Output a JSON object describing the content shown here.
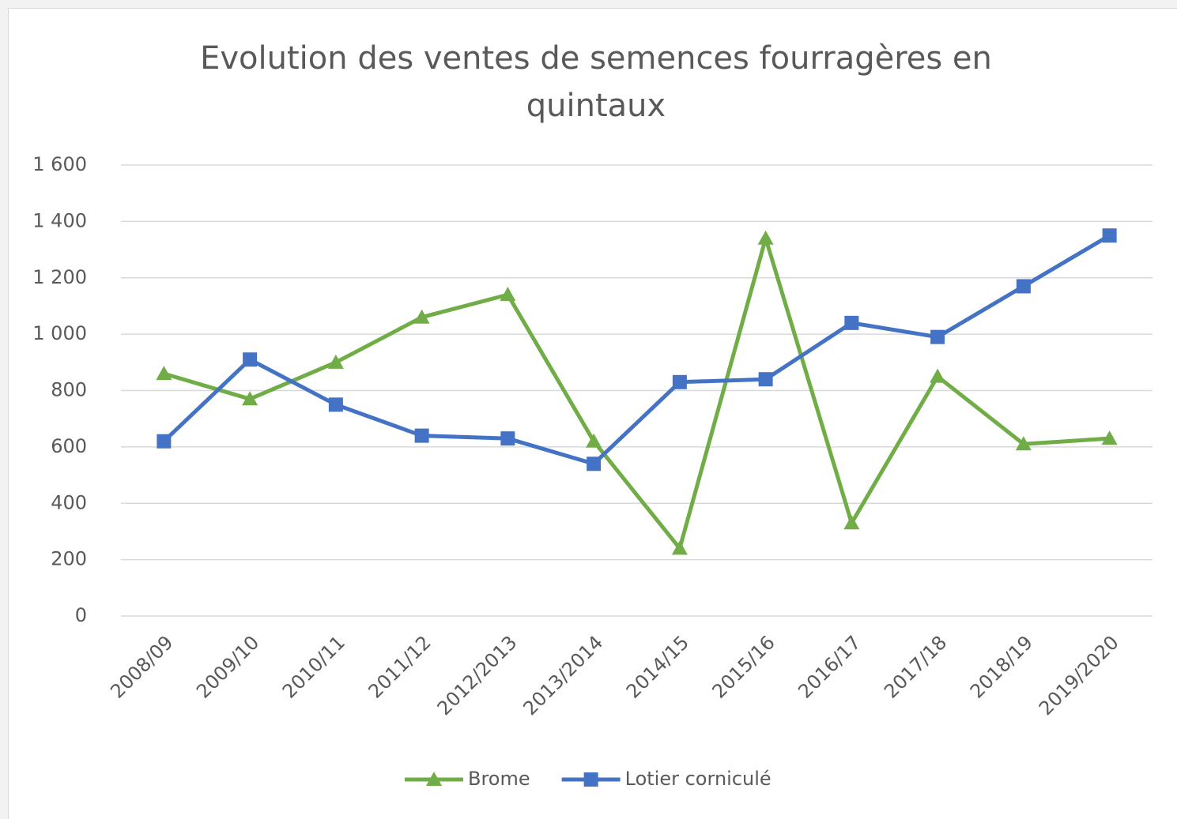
{
  "chart_data": {
    "type": "line",
    "title": "Evolution des ventes de semences fourragères en quintaux",
    "categories": [
      "2008/09",
      "2009/10",
      "2010/11",
      "2011/12",
      "2012/2013",
      "2013/2014",
      "2014/15",
      "2015/16",
      "2016/17",
      "2017/18",
      "2018/19",
      "2019/2020"
    ],
    "series": [
      {
        "name": "Brome",
        "color": "#70ad47",
        "marker": "triangle",
        "values": [
          860,
          770,
          900,
          1060,
          1140,
          620,
          240,
          1340,
          330,
          850,
          610,
          630
        ]
      },
      {
        "name": "Lotier corniculé",
        "color": "#4472c4",
        "marker": "square",
        "values": [
          620,
          910,
          750,
          640,
          630,
          540,
          830,
          840,
          1040,
          990,
          1170,
          1350
        ]
      }
    ],
    "ylim": [
      0,
      1600
    ],
    "yticks": [
      0,
      200,
      400,
      600,
      800,
      {
        "value": 1000,
        "label": "1 000"
      },
      {
        "value": 1200,
        "label": "1 200"
      },
      {
        "value": 1400,
        "label": "1 400"
      },
      {
        "value": 1600,
        "label": "1 600"
      }
    ],
    "grid": true,
    "legend": "bottom"
  }
}
